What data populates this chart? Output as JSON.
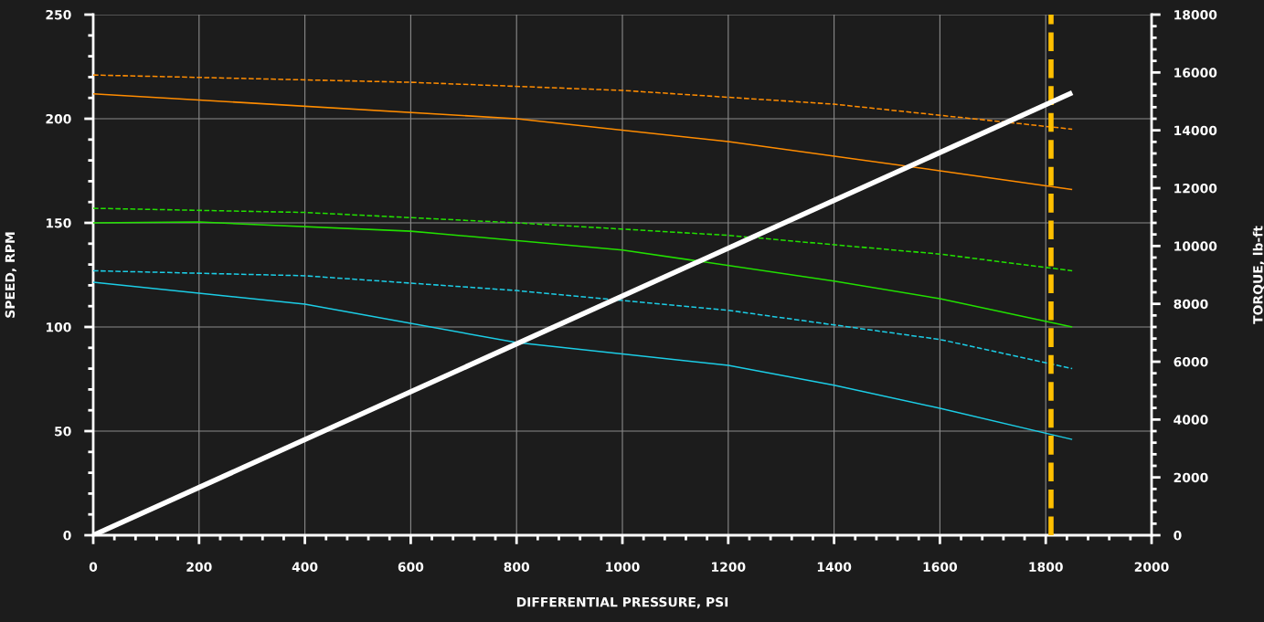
{
  "chart_data": {
    "type": "line",
    "xlabel": "DIFFERENTIAL PRESSURE, PSI",
    "ylabel": "SPEED, RPM",
    "y2label": "TORQUE, lb-ft",
    "xlim": [
      0,
      2000
    ],
    "xticks": [
      0,
      200,
      400,
      600,
      800,
      1000,
      1200,
      1400,
      1600,
      1800,
      2000
    ],
    "ylim": [
      0,
      250
    ],
    "yticks": [
      0,
      50,
      100,
      150,
      200,
      250
    ],
    "y2lim": [
      0,
      18000
    ],
    "y2ticks": [
      0,
      2000,
      4000,
      6000,
      8000,
      10000,
      12000,
      14000,
      16000,
      18000
    ],
    "grid": true,
    "series": [
      {
        "color": "#ff8c00",
        "line_style": "dashed",
        "x": [
          0,
          600,
          1000,
          1400,
          1850
        ],
        "values": [
          221,
          217.5,
          213.6,
          207,
          195
        ]
      },
      {
        "color": "#ff8c00",
        "line_style": "solid",
        "x": [
          0,
          800,
          1200,
          1600,
          1850
        ],
        "values": [
          212,
          200,
          189,
          175,
          166
        ]
      },
      {
        "color": "#22e000",
        "line_style": "dashed",
        "x": [
          0,
          400,
          800,
          1200,
          1600,
          1850
        ],
        "values": [
          157,
          155,
          150,
          144,
          135,
          127
        ]
      },
      {
        "color": "#22e000",
        "line_style": "solid",
        "x": [
          0,
          200,
          600,
          1000,
          1400,
          1600,
          1850
        ],
        "values": [
          150,
          150.4,
          146,
          137,
          122,
          113.6,
          100
        ]
      },
      {
        "color": "#1ccde6",
        "line_style": "dashed",
        "x": [
          0,
          400,
          800,
          1200,
          1600,
          1850
        ],
        "values": [
          127,
          124.6,
          117.5,
          108,
          94,
          80
        ]
      },
      {
        "color": "#1ccde6",
        "line_style": "solid",
        "x": [
          0,
          400,
          800,
          1200,
          1400,
          1600,
          1850
        ],
        "values": [
          121.5,
          111,
          92.5,
          81.6,
          72,
          61,
          46
        ]
      },
      {
        "color": "#ffffff",
        "line_style": "solid",
        "axis": "y2",
        "x": [
          0,
          1850
        ],
        "values": [
          0,
          15300
        ]
      }
    ],
    "ref_lines": [
      {
        "axis": "x",
        "value": 1810,
        "color": "#ffc000",
        "line_style": "dashed"
      }
    ]
  }
}
